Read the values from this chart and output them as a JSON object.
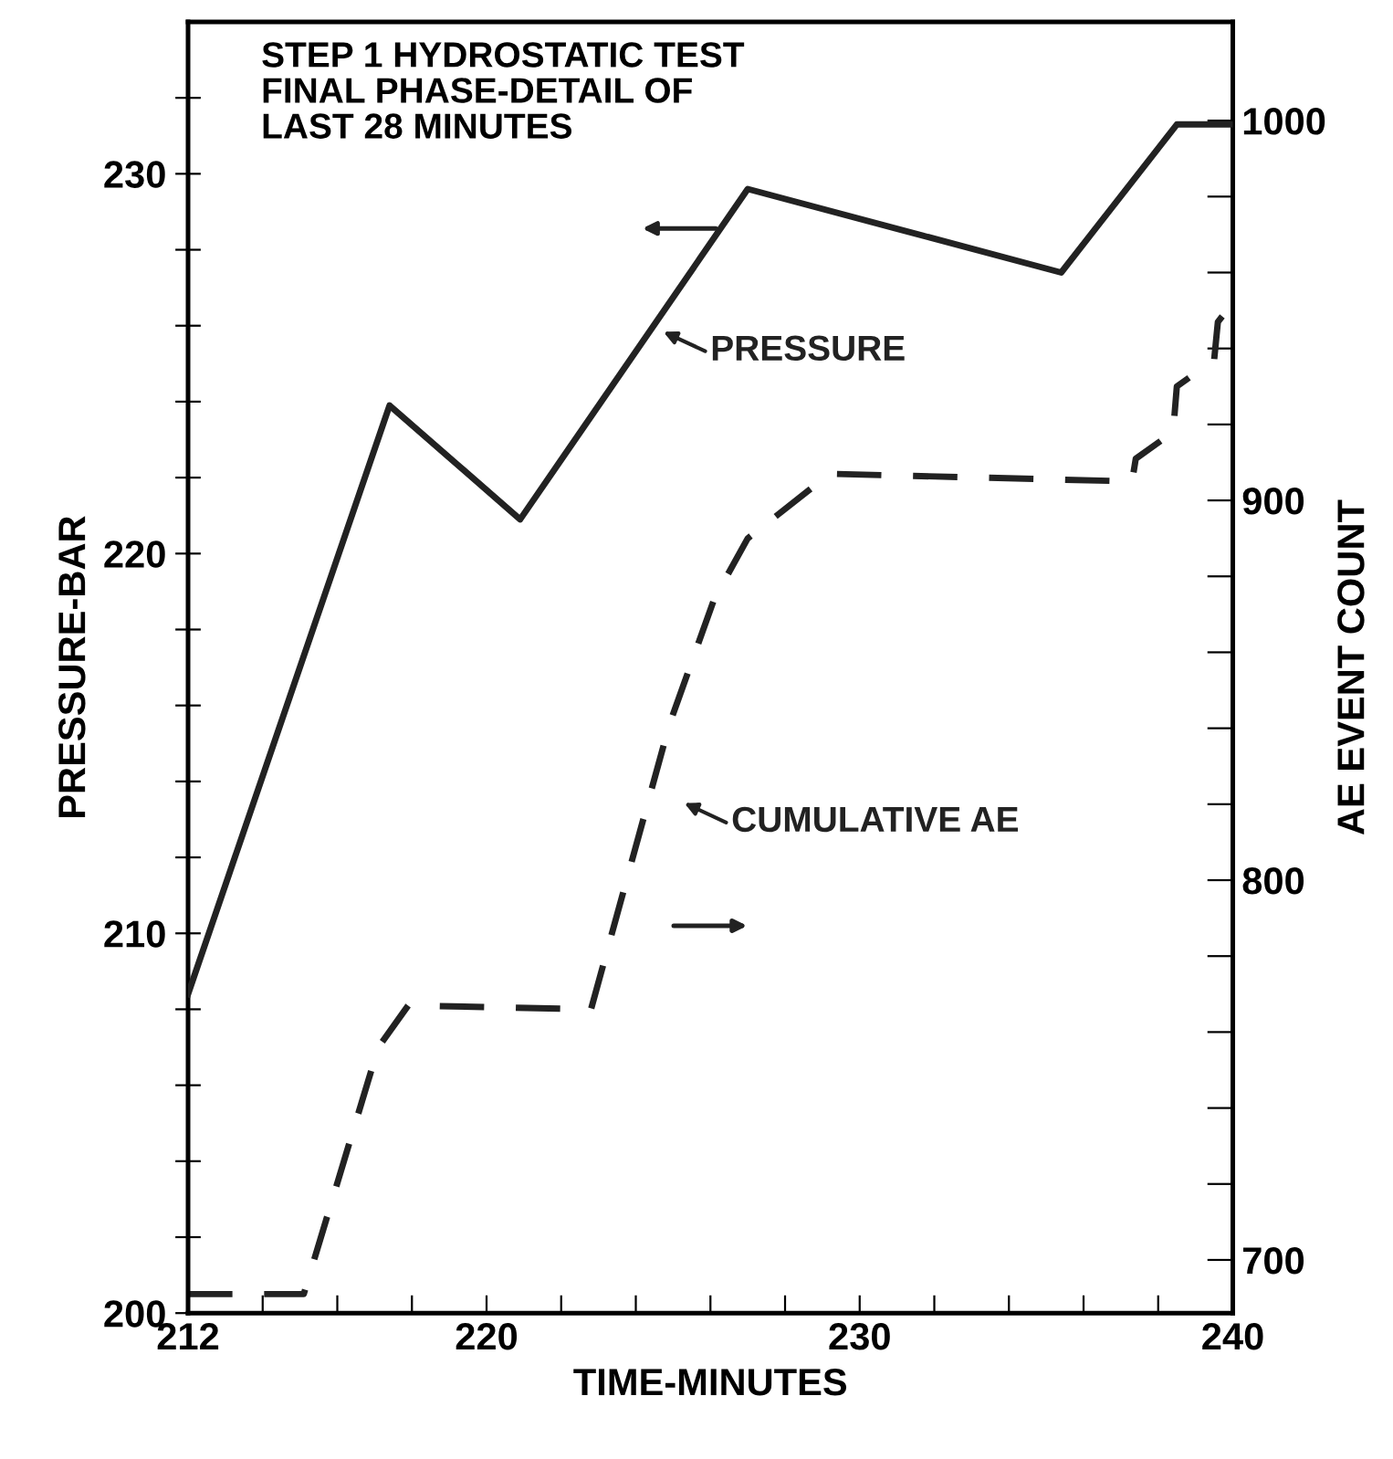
{
  "chart_data": {
    "type": "line",
    "title": "STEP 1 HYDROSTATIC TEST\nFINAL PHASE-DETAIL OF\nLAST 28 MINUTES",
    "xlabel": "TIME-MINUTES",
    "ylabel": "PRESSURE-BAR",
    "y2label": "AE EVENT COUNT",
    "xlim": [
      212,
      240
    ],
    "xticks": [
      212,
      {
        "value": 214,
        "label": null
      },
      {
        "value": 216,
        "label": null
      },
      {
        "value": 218,
        "label": null
      },
      220,
      {
        "value": 222,
        "label": null
      },
      {
        "value": 224,
        "label": null
      },
      {
        "value": 226,
        "label": null
      },
      {
        "value": 228,
        "label": null
      },
      230,
      {
        "value": 232,
        "label": null
      },
      {
        "value": 234,
        "label": null
      },
      {
        "value": 236,
        "label": null
      },
      {
        "value": 238,
        "label": null
      },
      240
    ],
    "ylim": [
      200,
      234
    ],
    "yticks": [
      200,
      {
        "value": 202,
        "label": null
      },
      {
        "value": 204,
        "label": null
      },
      {
        "value": 206,
        "label": null
      },
      {
        "value": 208,
        "label": null
      },
      210,
      {
        "value": 212,
        "label": null
      },
      {
        "value": 214,
        "label": null
      },
      {
        "value": 216,
        "label": null
      },
      {
        "value": 218,
        "label": null
      },
      220,
      {
        "value": 222,
        "label": null
      },
      {
        "value": 224,
        "label": null
      },
      {
        "value": 226,
        "label": null
      },
      {
        "value": 228,
        "label": null
      },
      230,
      {
        "value": 232,
        "label": null
      }
    ],
    "y2lim": [
      686,
      1026
    ],
    "y2ticks": [
      700,
      {
        "value": 720,
        "label": null
      },
      {
        "value": 740,
        "label": null
      },
      {
        "value": 760,
        "label": null
      },
      {
        "value": 780,
        "label": null
      },
      800,
      {
        "value": 820,
        "label": null
      },
      {
        "value": 840,
        "label": null
      },
      {
        "value": 860,
        "label": null
      },
      {
        "value": 880,
        "label": null
      },
      900,
      {
        "value": 920,
        "label": null
      },
      {
        "value": 940,
        "label": null
      },
      {
        "value": 960,
        "label": null
      },
      {
        "value": 980,
        "label": null
      },
      1000
    ],
    "grid": false,
    "marker": "none",
    "annotations": [
      "PRESSURE",
      "CUMULATIVE AE"
    ],
    "series": [
      {
        "color": "#222222",
        "line_style": "solid",
        "x": [
          212,
          217.4,
          220.9,
          227.0,
          235.4,
          238.5,
          240
        ],
        "values": [
          208.4,
          223.9,
          220.9,
          229.6,
          227.4,
          231.3,
          231.3
        ]
      },
      {
        "color": "#222222",
        "line_style": "dashed",
        "axis": "y2",
        "x": [
          212,
          215.1,
          217.1,
          217.9,
          222.8,
          224.9,
          226.1,
          227.0,
          229.2,
          237.3,
          237.4,
          238.4,
          238.5,
          239.5,
          239.6,
          240
        ],
        "values": [
          691,
          691,
          756,
          767,
          766,
          841,
          874,
          890,
          907,
          905,
          911,
          918,
          930,
          937,
          947,
          952
        ]
      }
    ]
  }
}
